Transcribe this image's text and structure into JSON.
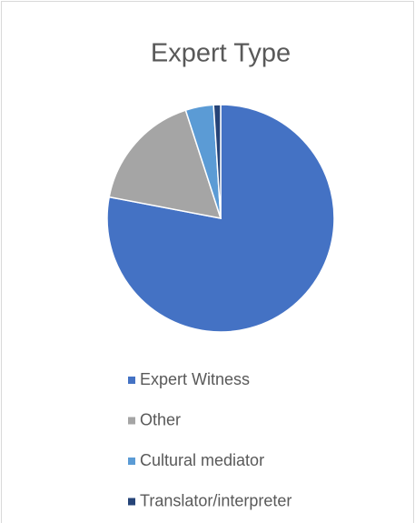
{
  "chart_data": {
    "type": "pie",
    "title": "Expert Type",
    "categories": [
      "Expert Witness",
      "Other",
      "Cultural mediator",
      "Translator/interpreter"
    ],
    "values": [
      78,
      17,
      4,
      1
    ],
    "colors": [
      "#4472c4",
      "#a5a5a5",
      "#5b9bd5",
      "#264478"
    ],
    "legend": "bottom"
  }
}
